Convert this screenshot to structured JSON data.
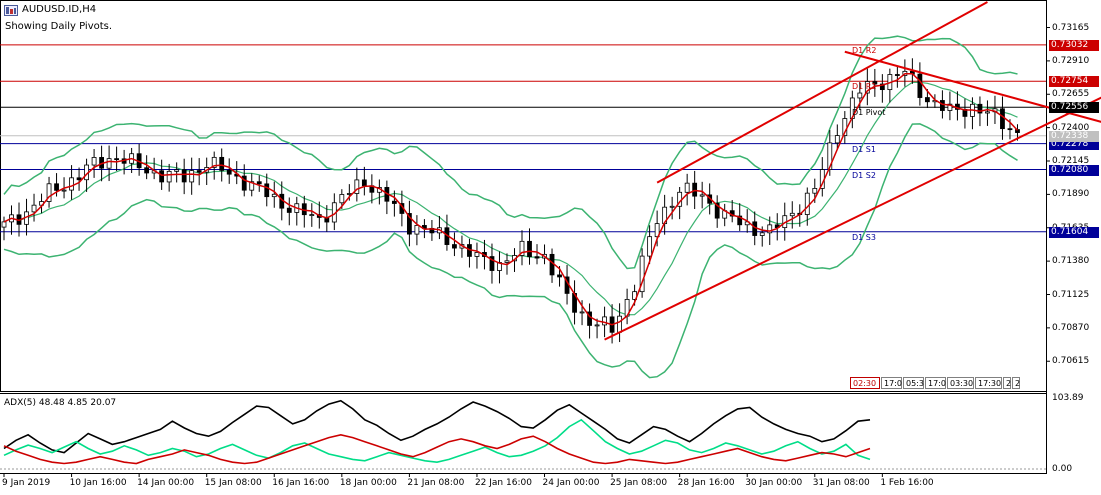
{
  "header": {
    "title": "AUDUSD.ID,H4",
    "subtitle": "Showing Daily Pivots."
  },
  "colors": {
    "candle": "#000000",
    "bollinger": "#3cb371",
    "ma": "#d40000",
    "trend": "#e00000",
    "pivot_resist": "#cc0000",
    "pivot_main": "#000000",
    "pivot_support": "#000099",
    "adx_main": "#000000",
    "adx_plus": "#00dd88",
    "adx_minus": "#cc0000"
  },
  "chart_data": [
    {
      "type": "candlestick",
      "title": "AUDUSD.ID,H4",
      "ylim": [
        0.7038,
        0.7336
      ],
      "y_ticks": [
        "0.73165",
        "0.72910",
        "0.72655",
        "0.72400",
        "0.72145",
        "0.71890",
        "0.71635",
        "0.71380",
        "0.71125",
        "0.70870",
        "0.70615"
      ],
      "y_tick_values": [
        0.73165,
        0.7291,
        0.72655,
        0.724,
        0.72145,
        0.7189,
        0.71635,
        0.7138,
        0.71125,
        0.7087,
        0.70615
      ],
      "x_labels": [
        "9 Jan 2019",
        "10 Jan 16:00",
        "14 Jan 00:00",
        "15 Jan 08:00",
        "16 Jan 16:00",
        "18 Jan 00:00",
        "21 Jan 08:00",
        "22 Jan 16:00",
        "24 Jan 00:00",
        "25 Jan 08:00",
        "28 Jan 16:00",
        "30 Jan 00:00",
        "31 Jan 08:00",
        "1 Feb 16:00"
      ],
      "x_label_bar_index": [
        0,
        9,
        18,
        27,
        36,
        45,
        54,
        63,
        72,
        81,
        90,
        99,
        108,
        117
      ],
      "close_path": [
        [
          0,
          0.7165
        ],
        [
          3,
          0.7176
        ],
        [
          6,
          0.719
        ],
        [
          9,
          0.72
        ],
        [
          12,
          0.7212
        ],
        [
          15,
          0.7218
        ],
        [
          18,
          0.721
        ],
        [
          21,
          0.7204
        ],
        [
          24,
          0.7202
        ],
        [
          27,
          0.7213
        ],
        [
          30,
          0.7205
        ],
        [
          33,
          0.7196
        ],
        [
          36,
          0.7186
        ],
        [
          39,
          0.7176
        ],
        [
          42,
          0.717
        ],
        [
          45,
          0.7186
        ],
        [
          48,
          0.72
        ],
        [
          51,
          0.7185
        ],
        [
          54,
          0.7166
        ],
        [
          57,
          0.716
        ],
        [
          60,
          0.7152
        ],
        [
          63,
          0.714
        ],
        [
          66,
          0.7136
        ],
        [
          69,
          0.7146
        ],
        [
          72,
          0.7142
        ],
        [
          75,
          0.711
        ],
        [
          78,
          0.7092
        ],
        [
          81,
          0.7086
        ],
        [
          84,
          0.712
        ],
        [
          87,
          0.717
        ],
        [
          90,
          0.7192
        ],
        [
          93,
          0.7188
        ],
        [
          96,
          0.7172
        ],
        [
          99,
          0.7165
        ],
        [
          102,
          0.716
        ],
        [
          105,
          0.7175
        ],
        [
          108,
          0.7192
        ],
        [
          111,
          0.724
        ],
        [
          114,
          0.7268
        ],
        [
          117,
          0.7276
        ],
        [
          120,
          0.7282
        ],
        [
          123,
          0.7262
        ],
        [
          126,
          0.7252
        ],
        [
          129,
          0.7256
        ],
        [
          132,
          0.7248
        ],
        [
          135,
          0.7236
        ]
      ],
      "bollinger_offset": 0.006,
      "ma_lag": 2,
      "pivots": [
        {
          "name": "D1 R2",
          "value": 0.73032,
          "label": "0.73032",
          "kind": "resist"
        },
        {
          "name": "D1 R1",
          "value": 0.72754,
          "label": "0.72754",
          "kind": "resist"
        },
        {
          "name": "D1 Pivot",
          "value": 0.72556,
          "label": "0.72556",
          "kind": "main"
        },
        {
          "name": "D1 S1",
          "value": 0.72278,
          "label": "0.72278",
          "kind": "support"
        },
        {
          "name": "D1 S2",
          "value": 0.7208,
          "label": "0.72080",
          "kind": "support"
        },
        {
          "name": "D1 S3",
          "value": 0.71604,
          "label": "0.71604",
          "kind": "support"
        }
      ],
      "trendlines": [
        {
          "from": [
            87,
            0.7198
          ],
          "to": [
            131,
            0.7336
          ]
        },
        {
          "from": [
            80,
            0.7078
          ],
          "to": [
            163,
            0.731
          ]
        },
        {
          "from": [
            112,
            0.7298
          ],
          "to": [
            163,
            0.7218
          ]
        }
      ],
      "current_price": "0.72338"
    },
    {
      "type": "line",
      "title": "ADX(5) 48.48 4.85 20.07",
      "indicator": "ADX(5)",
      "values_shown": [
        "48.48",
        "4.85",
        "20.07"
      ],
      "ylim": [
        0,
        103.89
      ],
      "y_ticks": [
        "103.89",
        "0.00"
      ],
      "series": [
        {
          "name": "ADX",
          "color": "#000000",
          "values": [
            30,
            42,
            50,
            38,
            28,
            24,
            38,
            52,
            44,
            36,
            40,
            46,
            52,
            58,
            70,
            60,
            52,
            48,
            55,
            68,
            80,
            92,
            90,
            78,
            66,
            72,
            85,
            95,
            100,
            88,
            72,
            64,
            52,
            42,
            48,
            58,
            66,
            76,
            88,
            98,
            92,
            84,
            74,
            62,
            60,
            72,
            86,
            94,
            82,
            70,
            58,
            44,
            38,
            50,
            62,
            58,
            48,
            40,
            52,
            66,
            78,
            88,
            90,
            76,
            66,
            58,
            52,
            48,
            40,
            44,
            56,
            70,
            72
          ]
        },
        {
          "name": "+DI",
          "color": "#00dd88",
          "values": [
            20,
            28,
            35,
            30,
            24,
            32,
            40,
            30,
            22,
            26,
            34,
            28,
            20,
            24,
            30,
            26,
            18,
            22,
            30,
            36,
            28,
            20,
            16,
            24,
            34,
            38,
            30,
            22,
            18,
            14,
            12,
            18,
            24,
            20,
            16,
            12,
            10,
            14,
            20,
            26,
            32,
            24,
            18,
            20,
            26,
            34,
            46,
            62,
            72,
            56,
            40,
            30,
            22,
            26,
            34,
            42,
            38,
            28,
            24,
            30,
            38,
            34,
            28,
            22,
            26,
            34,
            40,
            30,
            22,
            26,
            36,
            20,
            14
          ]
        },
        {
          "name": "-DI",
          "color": "#cc0000",
          "values": [
            34,
            26,
            20,
            14,
            10,
            8,
            10,
            14,
            18,
            14,
            10,
            8,
            14,
            18,
            22,
            28,
            24,
            20,
            14,
            10,
            8,
            10,
            16,
            22,
            28,
            34,
            40,
            46,
            50,
            46,
            40,
            34,
            28,
            22,
            18,
            24,
            32,
            40,
            44,
            40,
            34,
            30,
            36,
            44,
            48,
            40,
            30,
            22,
            16,
            10,
            8,
            10,
            14,
            12,
            10,
            8,
            10,
            14,
            18,
            22,
            26,
            30,
            24,
            18,
            14,
            12,
            16,
            20,
            24,
            22,
            18,
            24,
            30
          ]
        }
      ]
    }
  ],
  "price_tags": {
    "r2": "0.73032",
    "r1": "0.72754",
    "pivot": "0.72556",
    "current": "0.72338",
    "s1": "0.72278",
    "s2": "0.72080",
    "s3": "0.71604"
  },
  "toolbar": {
    "buttons": [
      "02:30",
      "17:0",
      "05:3",
      "17:0",
      "03:30",
      "17:30",
      "2",
      "2"
    ]
  }
}
